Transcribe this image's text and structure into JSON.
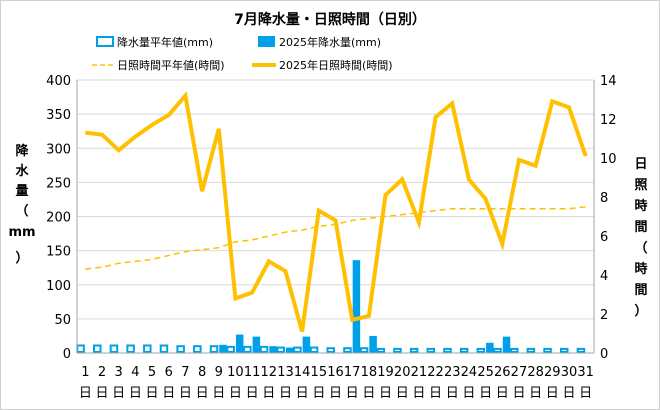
{
  "chart_data": {
    "type": "bar+line",
    "title": "7月降水量・日照時間（日別）",
    "ylabel_left": [
      "降",
      "水",
      "量",
      "（",
      "mm",
      "）"
    ],
    "ylabel_right": [
      "日",
      "照",
      "時",
      "間",
      "（",
      "時",
      "間",
      "）"
    ],
    "ylim_left": [
      0,
      400
    ],
    "ylim_right": [
      0,
      14
    ],
    "yticks_left": [
      0,
      50,
      100,
      150,
      200,
      250,
      300,
      350,
      400
    ],
    "yticks_right": [
      0,
      2,
      4,
      6,
      8,
      10,
      12,
      14
    ],
    "day_suffix": "日",
    "categories": [
      "1",
      "2",
      "3",
      "4",
      "5",
      "6",
      "7",
      "8",
      "9",
      "10",
      "11",
      "12",
      "13",
      "14",
      "15",
      "16",
      "17",
      "18",
      "19",
      "20",
      "21",
      "22",
      "23",
      "24",
      "25",
      "26",
      "27",
      "28",
      "29",
      "30",
      "31"
    ],
    "legend": [
      {
        "name": "降水量平年値(mm)",
        "style": "bar-outline"
      },
      {
        "name": "2025年降水量(mm)",
        "style": "bar-filled"
      },
      {
        "name": "日照時間平年値(時間)",
        "style": "line-dashed"
      },
      {
        "name": "2025年日照時間(時間)",
        "style": "line-solid"
      }
    ],
    "series": {
      "precip_normal": {
        "name": "降水量平年値(mm)",
        "axis": "left",
        "values": [
          11,
          11,
          11,
          11,
          11,
          11,
          10,
          10,
          10,
          9,
          9,
          9,
          8,
          8,
          8,
          7,
          7,
          7,
          6,
          6,
          6,
          6,
          6,
          6,
          6,
          6,
          6,
          6,
          6,
          6,
          6
        ]
      },
      "precip_2025": {
        "name": "2025年降水量(mm)",
        "axis": "left",
        "values": [
          0,
          0,
          0,
          0,
          0,
          0,
          0,
          0,
          12,
          27,
          24,
          10,
          8,
          24,
          0,
          0,
          136,
          25,
          0,
          0,
          0,
          0,
          0,
          0,
          15,
          24,
          0,
          0,
          0,
          0,
          0
        ]
      },
      "sun_normal": {
        "name": "日照時間平年値(時間)",
        "axis": "right",
        "values": [
          4.3,
          4.4,
          4.6,
          4.7,
          4.8,
          5.0,
          5.2,
          5.3,
          5.4,
          5.7,
          5.8,
          6.0,
          6.2,
          6.3,
          6.5,
          6.6,
          6.8,
          6.9,
          7.0,
          7.1,
          7.2,
          7.3,
          7.4,
          7.4,
          7.4,
          7.4,
          7.4,
          7.4,
          7.4,
          7.4,
          7.5
        ]
      },
      "sun_2025": {
        "name": "2025年日照時間(時間)",
        "axis": "right",
        "values": [
          11.3,
          11.2,
          10.4,
          11.1,
          11.7,
          12.2,
          13.2,
          8.3,
          11.5,
          2.8,
          3.1,
          4.7,
          4.2,
          1.1,
          7.3,
          6.8,
          1.7,
          1.9,
          8.1,
          8.9,
          6.7,
          12.1,
          12.8,
          8.9,
          7.9,
          5.6,
          9.9,
          9.6,
          12.9,
          12.6,
          10.1
        ]
      }
    },
    "colors": {
      "bar": "#00a0e9",
      "sun_line": "#ffc000",
      "sun_normal_line": "#ffc000",
      "grid": "#d9d9d9",
      "axis": "#a6a6a6"
    },
    "grid": true
  }
}
